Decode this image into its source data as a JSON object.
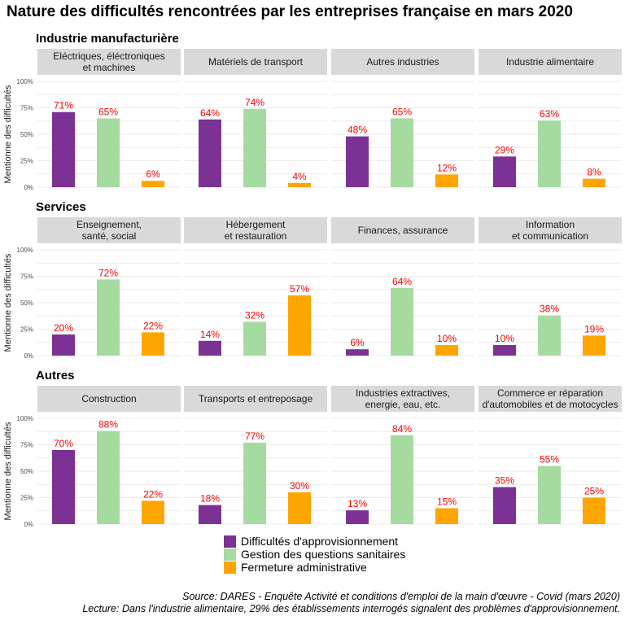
{
  "chart_data": {
    "type": "bar",
    "title": "Nature des difficultés rencontrées par les entreprises française en mars 2020",
    "ylabel": "Mentionne des difficultés",
    "ylim": [
      0,
      100
    ],
    "yticks": [
      "0%",
      "25%",
      "50%",
      "75%",
      "100%"
    ],
    "grid": true,
    "legend_position": "bottom",
    "series": [
      {
        "name": "Difficultés d'approvisionnement",
        "color": "#7b3294"
      },
      {
        "name": "Gestion des questions sanitaires",
        "color": "#a6dba0"
      },
      {
        "name": "Fermeture administrative",
        "color": "#ffa500"
      }
    ],
    "label_color": "#ff0000",
    "groups": [
      {
        "name": "Industrie manufacturière",
        "panels": [
          {
            "title": [
              "Eléctriques, éléctroniques",
              "et machines"
            ],
            "values": [
              71,
              65,
              6
            ],
            "labels": [
              "71%",
              "65%",
              "6%"
            ]
          },
          {
            "title": [
              "Matériels de transport"
            ],
            "values": [
              64,
              74,
              4
            ],
            "labels": [
              "64%",
              "74%",
              "4%"
            ]
          },
          {
            "title": [
              "Autres industries"
            ],
            "values": [
              48,
              65,
              12
            ],
            "labels": [
              "48%",
              "65%",
              "12%"
            ]
          },
          {
            "title": [
              "Industrie alimentaire"
            ],
            "values": [
              29,
              63,
              8
            ],
            "labels": [
              "29%",
              "63%",
              "8%"
            ]
          }
        ]
      },
      {
        "name": "Services",
        "panels": [
          {
            "title": [
              "Enseignement,",
              "santé, social"
            ],
            "values": [
              20,
              72,
              22
            ],
            "labels": [
              "20%",
              "72%",
              "22%"
            ]
          },
          {
            "title": [
              "Hébergement",
              "et restauration"
            ],
            "values": [
              14,
              32,
              57
            ],
            "labels": [
              "14%",
              "32%",
              "57%"
            ]
          },
          {
            "title": [
              "Finances, assurance"
            ],
            "values": [
              6,
              64,
              10
            ],
            "labels": [
              "6%",
              "64%",
              "10%"
            ]
          },
          {
            "title": [
              "Information",
              "et communication"
            ],
            "values": [
              10,
              38,
              19
            ],
            "labels": [
              "10%",
              "38%",
              "19%"
            ]
          }
        ]
      },
      {
        "name": "Autres",
        "panels": [
          {
            "title": [
              "Construction"
            ],
            "values": [
              70,
              88,
              22
            ],
            "labels": [
              "70%",
              "88%",
              "22%"
            ]
          },
          {
            "title": [
              "Transports et entreposage"
            ],
            "values": [
              18,
              77,
              30
            ],
            "labels": [
              "18%",
              "77%",
              "30%"
            ]
          },
          {
            "title": [
              "Industries extractives,",
              "energie, eau, etc."
            ],
            "values": [
              13,
              84,
              15
            ],
            "labels": [
              "13%",
              "84%",
              "15%"
            ]
          },
          {
            "title": [
              "Commerce er réparation",
              "d'automobiles et de motocycles"
            ],
            "values": [
              35,
              55,
              25
            ],
            "labels": [
              "35%",
              "55%",
              "25%"
            ]
          }
        ]
      }
    ],
    "caption": [
      "Source: DARES - Enquête Activité et conditions d'emploi de la main d'œuvre - Covid (mars 2020)",
      "Lecture: Dans l'industrie alimentaire, 29% des établissements interrogés signalent des problèmes d'approvisionnement."
    ]
  }
}
